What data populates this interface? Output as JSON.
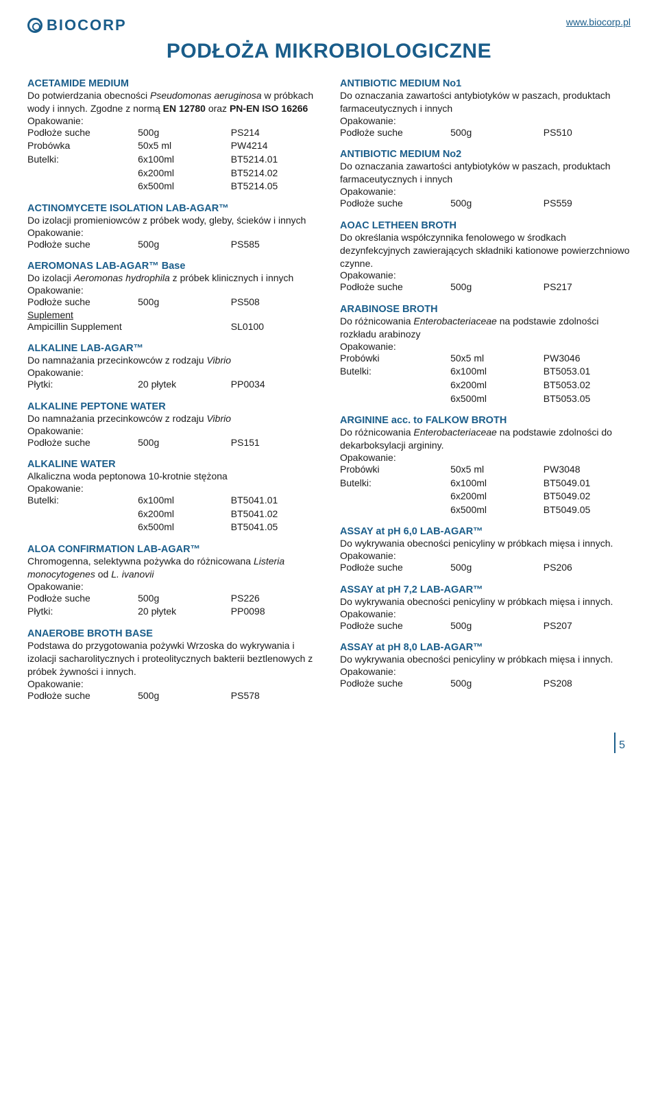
{
  "header": {
    "logo_text": "BIOCORP",
    "url": "www.biocorp.pl"
  },
  "page_title": "PODŁOŻA MIKROBIOLOGICZNE",
  "page_number": "5",
  "left": [
    {
      "title": "ACETAMIDE MEDIUM",
      "desc_pre": "Do potwierdzania obecności ",
      "desc_italic": "Pseudomonas aeruginosa",
      "desc_post": " w próbkach wody i innych. Zgodne z normą ",
      "desc_bold": "EN 12780",
      "desc_end": " oraz ",
      "desc_bold2": "PN-EN ISO 16266",
      "opak": "Opakowanie:",
      "rows": [
        {
          "c1": "Podłoże suche",
          "c2": "500g",
          "c3": "PS214"
        },
        {
          "c1": "Probówka",
          "c2": "50x5 ml",
          "c3": "PW4214"
        },
        {
          "c1": "Butelki:",
          "c2": "6x100ml",
          "c3": "BT5214.01"
        },
        {
          "c1": "",
          "c2": "6x200ml",
          "c3": "BT5214.02"
        },
        {
          "c1": "",
          "c2": "6x500ml",
          "c3": "BT5214.05"
        }
      ]
    },
    {
      "title": "ACTINOMYCETE ISOLATION LAB-AGAR™",
      "desc": "Do izolacji promieniowców z próbek wody, gleby, ścieków i innych",
      "opak": "Opakowanie:",
      "rows": [
        {
          "c1": "Podłoże suche",
          "c2": "500g",
          "c3": "PS585"
        }
      ]
    },
    {
      "title": "AEROMONAS LAB-AGAR™ Base",
      "desc_pre": "Do izolacji ",
      "desc_italic": "Aeromonas hydrophila",
      "desc_post": " z próbek klinicznych i innych",
      "opak": "Opakowanie:",
      "rows": [
        {
          "c1": "Podłoże suche",
          "c2": "500g",
          "c3": "PS508"
        }
      ],
      "supl_label": "Suplement",
      "supl_rows": [
        {
          "c1": "Ampicillin Supplement",
          "c2": "",
          "c3": "SL0100"
        }
      ]
    },
    {
      "title": "ALKALINE LAB-AGAR™",
      "desc_pre": "Do namnażania przecinkowców z rodzaju ",
      "desc_italic": "Vibrio",
      "opak": "Opakowanie:",
      "rows": [
        {
          "c1": "Płytki:",
          "c2": "20 płytek",
          "c3": "PP0034"
        }
      ]
    },
    {
      "title": "ALKALINE PEPTONE WATER",
      "desc_pre": "Do namnażania przecinkowców z rodzaju ",
      "desc_italic": "Vibrio",
      "opak": "Opakowanie:",
      "rows": [
        {
          "c1": "Podłoże suche",
          "c2": "500g",
          "c3": "PS151"
        }
      ]
    },
    {
      "title": "ALKALINE WATER",
      "desc": "Alkaliczna woda peptonowa 10-krotnie stężona",
      "opak": "Opakowanie:",
      "rows": [
        {
          "c1": "Butelki:",
          "c2": "6x100ml",
          "c3": "BT5041.01"
        },
        {
          "c1": "",
          "c2": "6x200ml",
          "c3": "BT5041.02"
        },
        {
          "c1": "",
          "c2": "6x500ml",
          "c3": "BT5041.05"
        }
      ]
    },
    {
      "title": "ALOA CONFIRMATION LAB-AGAR™",
      "desc_pre": "Chromogenna, selektywna pożywka do różnicowana ",
      "desc_italic": "Listeria monocytogenes",
      "desc_post": " od ",
      "desc_italic2": "L. ivanovii",
      "opak": "Opakowanie:",
      "rows": [
        {
          "c1": "Podłoże suche",
          "c2": "500g",
          "c3": "PS226"
        },
        {
          "c1": "Płytki:",
          "c2": "20 płytek",
          "c3": "PP0098"
        }
      ]
    },
    {
      "title": "ANAEROBE BROTH BASE",
      "desc": "Podstawa do przygotowania pożywki Wrzoska do wykrywania i izolacji sacharolitycznych i proteolitycznych bakterii beztlenowych z próbek żywności i innych.",
      "opak": "Opakowanie:",
      "rows": [
        {
          "c1": "Podłoże suche",
          "c2": "500g",
          "c3": "PS578"
        }
      ]
    }
  ],
  "right": [
    {
      "title": "ANTIBIOTIC MEDIUM No1",
      "desc": "Do oznaczania zawartości antybiotyków w paszach, produktach farmaceutycznych i innych",
      "opak": "Opakowanie:",
      "rows": [
        {
          "c1": "Podłoże suche",
          "c2": "500g",
          "c3": "PS510"
        }
      ]
    },
    {
      "title": "ANTIBIOTIC MEDIUM No2",
      "desc": "Do oznaczania zawartości antybiotyków w paszach, produktach farmaceutycznych i innych",
      "opak": "Opakowanie:",
      "rows": [
        {
          "c1": "Podłoże suche",
          "c2": "500g",
          "c3": "PS559"
        }
      ]
    },
    {
      "title": "AOAC LETHEEN BROTH",
      "desc": "Do określania współczynnika fenolowego w środkach dezynfekcyjnych zawierających składniki kationowe powierzchniowo czynne.",
      "opak": "Opakowanie:",
      "rows": [
        {
          "c1": "Podłoże suche",
          "c2": "500g",
          "c3": "PS217"
        }
      ]
    },
    {
      "title": "ARABINOSE BROTH",
      "desc_pre": "Do różnicowania ",
      "desc_italic": "Enterobacteriaceae",
      "desc_post": " na podstawie zdolności rozkładu arabinozy",
      "opak": "Opakowanie:",
      "rows": [
        {
          "c1": "Probówki",
          "c2": "50x5 ml",
          "c3": "PW3046"
        },
        {
          "c1": "Butelki:",
          "c2": "6x100ml",
          "c3": "BT5053.01"
        },
        {
          "c1": "",
          "c2": "6x200ml",
          "c3": "BT5053.02"
        },
        {
          "c1": "",
          "c2": "6x500ml",
          "c3": "BT5053.05"
        }
      ]
    },
    {
      "title": "ARGININE acc. to FALKOW BROTH",
      "desc_pre": "Do różnicowania ",
      "desc_italic": "Enterobacteriaceae",
      "desc_post": " na podstawie zdolności do dekarboksylacji argininy.",
      "opak": "Opakowanie:",
      "rows": [
        {
          "c1": "Probówki",
          "c2": "50x5 ml",
          "c3": "PW3048"
        },
        {
          "c1": "Butelki:",
          "c2": "6x100ml",
          "c3": "BT5049.01"
        },
        {
          "c1": "",
          "c2": "6x200ml",
          "c3": "BT5049.02"
        },
        {
          "c1": "",
          "c2": "6x500ml",
          "c3": "BT5049.05"
        }
      ]
    },
    {
      "title": "ASSAY at pH 6,0 LAB-AGAR™",
      "desc": "Do wykrywania obecności penicyliny w próbkach mięsa i innych.",
      "opak": "Opakowanie:",
      "rows": [
        {
          "c1": "Podłoże suche",
          "c2": "500g",
          "c3": "PS206"
        }
      ]
    },
    {
      "title": "ASSAY at pH 7,2 LAB-AGAR™",
      "desc": "Do wykrywania obecności penicyliny w próbkach mięsa i innych.",
      "opak": "Opakowanie:",
      "rows": [
        {
          "c1": "Podłoże suche",
          "c2": "500g",
          "c3": "PS207"
        }
      ]
    },
    {
      "title": "ASSAY at pH 8,0 LAB-AGAR™",
      "desc": "Do wykrywania obecności penicyliny w próbkach mięsa i innych.",
      "opak": "Opakowanie:",
      "rows": [
        {
          "c1": "Podłoże suche",
          "c2": "500g",
          "c3": "PS208"
        }
      ]
    }
  ]
}
